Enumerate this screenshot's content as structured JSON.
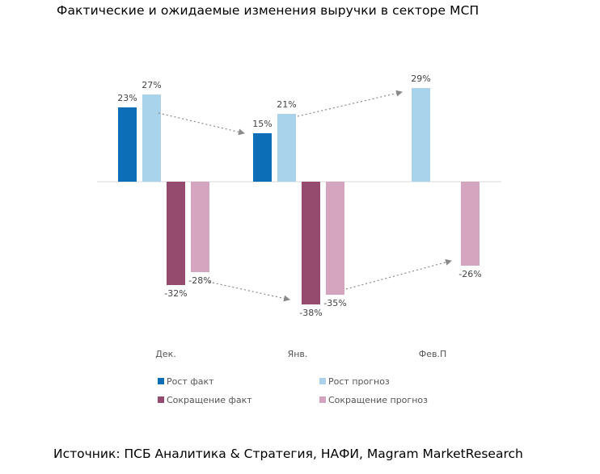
{
  "title": "Фактические и ожидаемые изменения выручки в секторе МСП",
  "source": "Источник: ПСБ Аналитика & Стратегия, НАФИ, Magram MarketResearch",
  "chart_data": {
    "type": "bar",
    "categories": [
      "Дек.",
      "Янв.",
      "Фев.П"
    ],
    "series": [
      {
        "name": "Рост факт",
        "values": [
          23,
          15,
          null
        ],
        "labels": [
          "23%",
          "15%",
          null
        ],
        "color": "#0d6eb8"
      },
      {
        "name": "Рост прогноз",
        "values": [
          27,
          21,
          29
        ],
        "labels": [
          "27%",
          "21%",
          "29%"
        ],
        "color": "#a9d3eb"
      },
      {
        "name": "Сокращение факт",
        "values": [
          -32,
          -38,
          null
        ],
        "labels": [
          "-32%",
          "-38%",
          null
        ],
        "color": "#954b6e"
      },
      {
        "name": "Сокращение прогноз",
        "values": [
          -28,
          -35,
          -26
        ],
        "labels": [
          "-28%",
          "-35%",
          "-26%"
        ],
        "color": "#d5a4be"
      }
    ],
    "legend_position": "bottom",
    "grid": false,
    "arrows": "dotted arrows connecting forecast to subsequent actual/forecast values"
  }
}
